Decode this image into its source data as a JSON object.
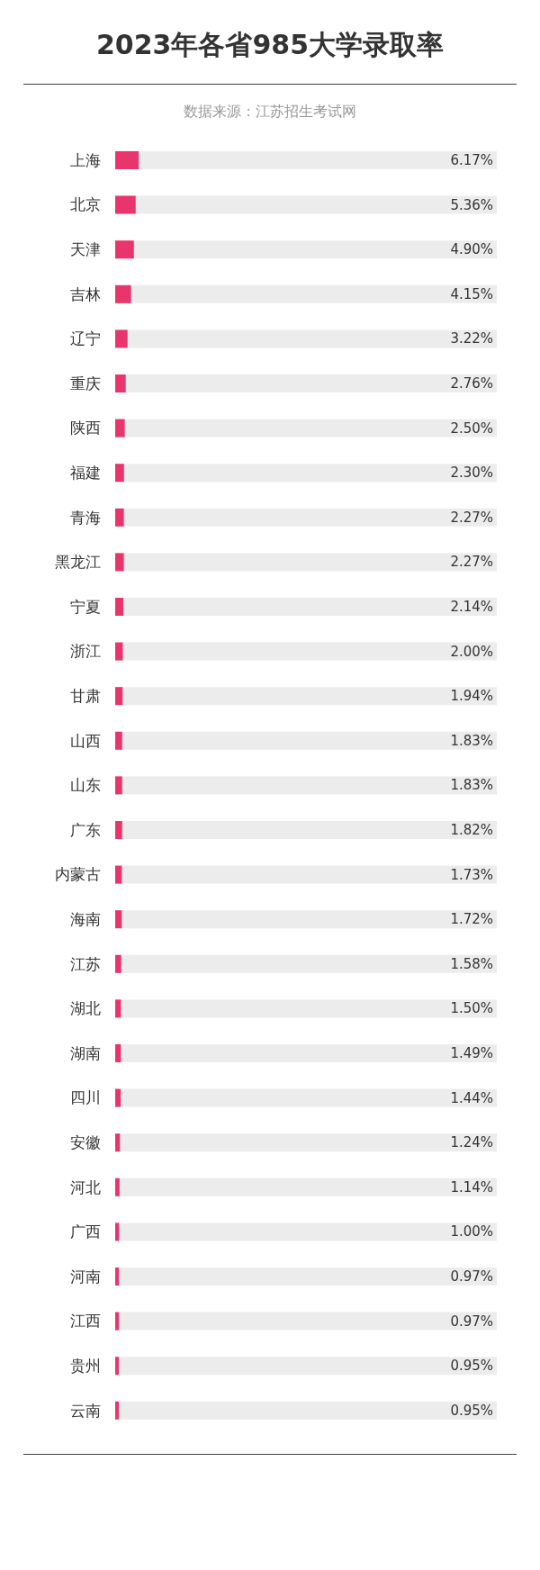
{
  "chart_data": {
    "type": "bar",
    "orientation": "horizontal",
    "title": "2023年各省985大学录取率",
    "annotations": [
      "数据来源：江苏招生考试网"
    ],
    "categories": [
      "上海",
      "北京",
      "天津",
      "吉林",
      "辽宁",
      "重庆",
      "陕西",
      "福建",
      "青海",
      "黑龙江",
      "宁夏",
      "浙江",
      "甘肃",
      "山西",
      "山东",
      "广东",
      "内蒙古",
      "海南",
      "江苏",
      "湖北",
      "湖南",
      "四川",
      "安徽",
      "河北",
      "广西",
      "河南",
      "江西",
      "贵州",
      "云南"
    ],
    "values": [
      6.17,
      5.36,
      4.9,
      4.15,
      3.22,
      2.76,
      2.5,
      2.3,
      2.27,
      2.27,
      2.14,
      2.0,
      1.94,
      1.83,
      1.83,
      1.82,
      1.73,
      1.72,
      1.58,
      1.5,
      1.49,
      1.44,
      1.24,
      1.14,
      1.0,
      0.97,
      0.97,
      0.95,
      0.95
    ],
    "value_labels": [
      "6.17%",
      "5.36%",
      "4.90%",
      "4.15%",
      "3.22%",
      "2.76%",
      "2.50%",
      "2.30%",
      "2.27%",
      "2.27%",
      "2.14%",
      "2.00%",
      "1.94%",
      "1.83%",
      "1.83%",
      "1.82%",
      "1.73%",
      "1.72%",
      "1.58%",
      "1.50%",
      "1.49%",
      "1.44%",
      "1.24%",
      "1.14%",
      "1.00%",
      "0.97%",
      "0.97%",
      "0.95%",
      "0.95%"
    ],
    "color": "#e8356c",
    "xlim": [
      0,
      100
    ],
    "tick_labels": "y"
  }
}
